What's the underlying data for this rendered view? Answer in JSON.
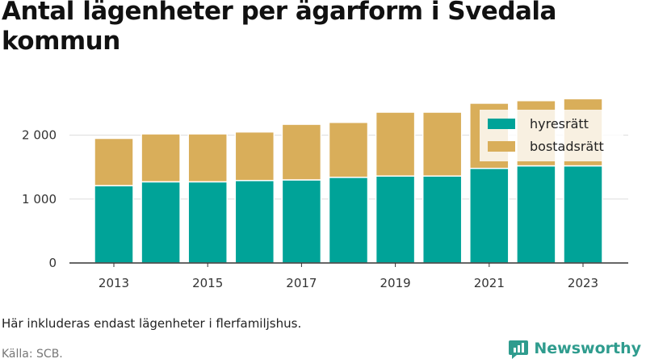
{
  "title": "Antal lägenheter per ägarform i Svedala kommun",
  "note": "Här inkluderas endast lägenheter i flerfamiljshus.",
  "source": "Källa: SCB.",
  "brand": "Newsworthy",
  "colors": {
    "hyresratt": "#00a398",
    "bostadsratt": "#d9ae5a",
    "grid": "#dddddd",
    "axis": "#333333"
  },
  "chart_data": {
    "type": "bar",
    "stacked": true,
    "categories": [
      "2013",
      "2014",
      "2015",
      "2016",
      "2017",
      "2018",
      "2019",
      "2020",
      "2021",
      "2022",
      "2023"
    ],
    "x_tick_labels": [
      "2013",
      "2015",
      "2017",
      "2019",
      "2021",
      "2023"
    ],
    "y_ticks": [
      0,
      1000,
      2000
    ],
    "y_tick_labels": [
      "0",
      "1 000",
      "2 000"
    ],
    "ylim": [
      0,
      2600
    ],
    "legend_position": "top-right",
    "series": [
      {
        "name": "hyresrätt",
        "color": "#00a398",
        "values": [
          1210,
          1270,
          1270,
          1290,
          1300,
          1340,
          1360,
          1360,
          1480,
          1520,
          1520
        ]
      },
      {
        "name": "bostadsrätt",
        "color": "#d9ae5a",
        "values": [
          740,
          750,
          750,
          760,
          870,
          860,
          1000,
          1000,
          1020,
          1020,
          1050
        ]
      }
    ]
  }
}
